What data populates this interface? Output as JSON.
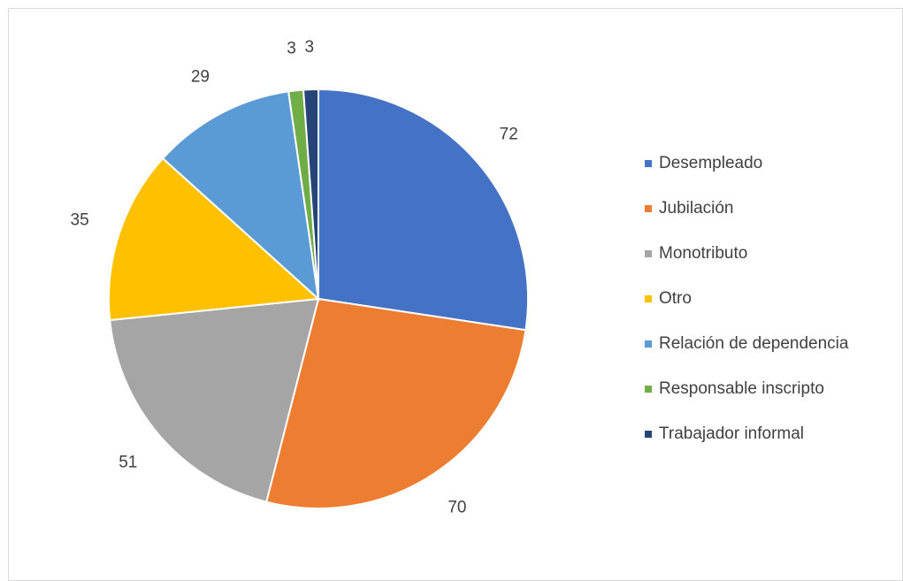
{
  "chart_data": {
    "type": "pie",
    "categories": [
      "Desempleado",
      "Jubilación",
      "Monotributo",
      "Otro",
      "Relación de dependencia",
      "Responsable inscripto",
      "Trabajador informal"
    ],
    "values": [
      72,
      70,
      51,
      35,
      29,
      3,
      3
    ],
    "colors": [
      "#4472c4",
      "#ed7d31",
      "#a5a5a5",
      "#ffc000",
      "#5b9bd5",
      "#70ad47",
      "#264478"
    ],
    "legend": "right"
  }
}
